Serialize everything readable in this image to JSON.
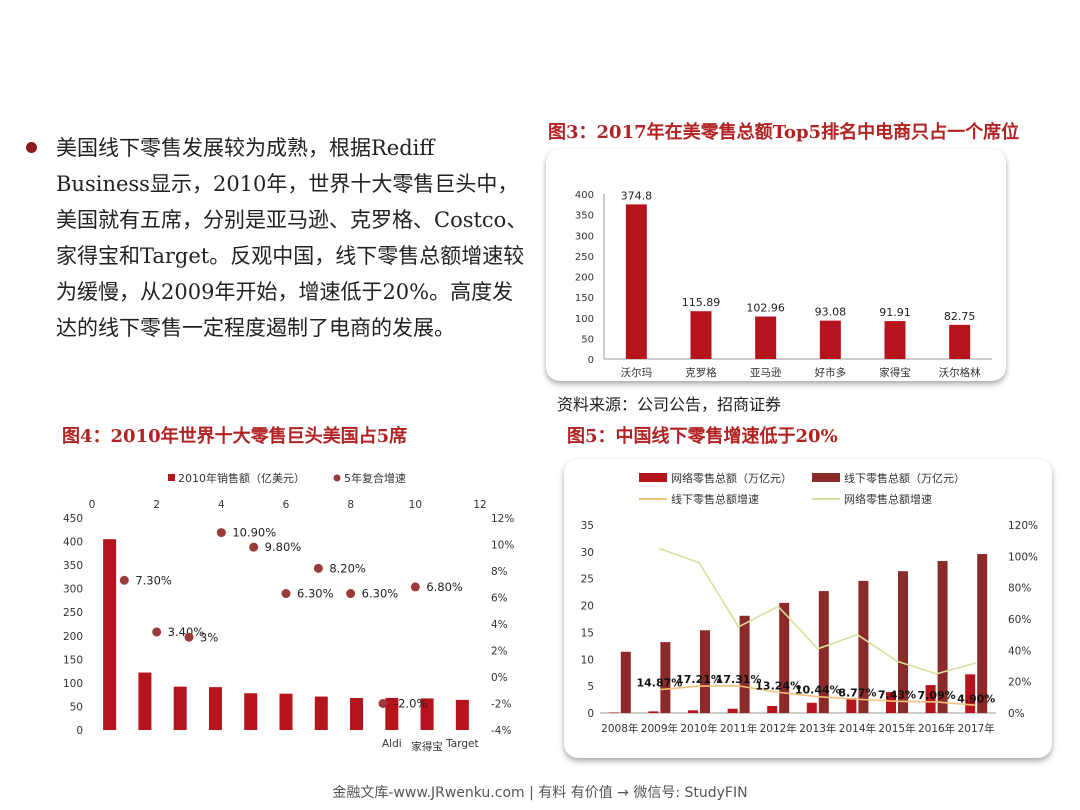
{
  "intro": {
    "text": "美国线下零售发展较为成熟，根据Rediff Business显示，2010年，世界十大零售巨头中，美国就有五席，分别是亚马逊、克罗格、Costco、家得宝和Target。反观中国，线下零售总额增速较为缓慢，从2009年开始，增速低于20%。高度发达的线下零售一定程度遏制了电商的发展。"
  },
  "fig3": {
    "title": "图3：2017年在美零售总额Top5排名中电商只占一个席位",
    "source": "资料来源：公司公告，招商证券"
  },
  "fig4": {
    "title": "图4：2010年世界十大零售巨头美国占5席"
  },
  "fig5": {
    "title": "图5：中国线下零售增速低于20%"
  },
  "footer": "金融文库-www.JRwenku.com | 有料 有价值 → 微信号: StudyFIN",
  "colors": {
    "bar": "#b5141c",
    "bar_dark": "#8c2a2a",
    "dot": "#9b3a3a",
    "offline_growth": "#f2c27a",
    "online_growth": "#d8df9a"
  },
  "chart_data": [
    {
      "id": "fig3",
      "type": "bar",
      "categories": [
        "沃尔玛",
        "克罗格",
        "亚马逊",
        "好市多",
        "家得宝",
        "沃尔格林"
      ],
      "values": [
        374.8,
        115.89,
        102.96,
        93.08,
        91.91,
        82.75
      ],
      "data_labels": [
        "374.8",
        "115.89",
        "102.96",
        "93.08",
        "91.91",
        "82.75"
      ],
      "ylim": [
        0,
        400
      ],
      "yticks": [
        0,
        50,
        100,
        150,
        200,
        250,
        300,
        350,
        400
      ],
      "grid": false
    },
    {
      "id": "fig4",
      "type": "bar",
      "legend": [
        "2010年销售额（亿美元）",
        "5年复合增速"
      ],
      "legend_position": "top",
      "categories": [
        "",
        "",
        "",
        "",
        "",
        "",
        "",
        "",
        "Aldi",
        "家得宝",
        "Target"
      ],
      "series": [
        {
          "name": "2010年销售额（亿美元）",
          "type": "bar",
          "values": [
            405,
            122,
            92,
            91,
            78,
            77,
            71,
            68,
            68,
            67,
            64
          ]
        },
        {
          "name": "5年复合增速",
          "type": "scatter",
          "x": [
            1,
            2,
            3,
            4,
            5,
            6,
            7,
            8,
            9,
            10
          ],
          "values": [
            7.3,
            3.4,
            3.0,
            10.9,
            9.8,
            6.3,
            8.2,
            6.3,
            -2.0,
            6.8
          ],
          "data_labels": [
            "7.30%",
            "3.40%",
            "3%",
            "10.90%",
            "9.80%",
            "6.30%",
            "8.20%",
            "6.30%",
            "-2.0%",
            "6.80%"
          ]
        }
      ],
      "ylim": [
        0,
        450
      ],
      "yticks": [
        0,
        50,
        100,
        150,
        200,
        250,
        300,
        350,
        400,
        450
      ],
      "x2lim": [
        0,
        12
      ],
      "x2ticks": [
        0,
        2,
        4,
        6,
        8,
        10,
        12
      ],
      "y2lim": [
        -4,
        12
      ],
      "y2ticks": [
        "12%",
        "10%",
        "8%",
        "6%",
        "4%",
        "2%",
        "0%",
        "-2%",
        "-4%"
      ],
      "grid": false
    },
    {
      "id": "fig5",
      "type": "bar",
      "legend": [
        "网络零售总额（万亿元）",
        "线下零售总额（万亿元）",
        "线下零售总额增速",
        "网络零售总额增速"
      ],
      "legend_position": "top",
      "categories": [
        "2008年",
        "2009年",
        "2010年",
        "2011年",
        "2012年",
        "2013年",
        "2014年",
        "2015年",
        "2016年",
        "2017年"
      ],
      "series": [
        {
          "name": "网络零售总额（万亿元）",
          "type": "bar",
          "values": [
            0.1,
            0.3,
            0.5,
            0.8,
            1.3,
            1.9,
            2.8,
            3.9,
            5.2,
            7.2
          ]
        },
        {
          "name": "线下零售总额（万亿元）",
          "type": "bar",
          "values": [
            11.4,
            13.2,
            15.4,
            18.1,
            20.5,
            22.7,
            24.6,
            26.4,
            28.3,
            29.6
          ]
        },
        {
          "name": "线下零售总额增速",
          "type": "line",
          "values": [
            null,
            14.87,
            17.21,
            17.31,
            13.24,
            10.44,
            8.77,
            7.43,
            7.09,
            4.9
          ],
          "data_labels": [
            "",
            "14.87%",
            "17.21%",
            "17.31%",
            "13.24%",
            "10.44%",
            "8.77%",
            "7.43%",
            "7.09%",
            "4.90%"
          ]
        },
        {
          "name": "网络零售总额增速",
          "type": "line",
          "values": [
            null,
            105,
            96,
            55,
            68,
            41,
            50,
            33,
            25,
            32
          ]
        }
      ],
      "ylim": [
        0,
        35
      ],
      "yticks": [
        0,
        5,
        10,
        15,
        20,
        25,
        30,
        35
      ],
      "y2lim": [
        0,
        120
      ],
      "y2ticks": [
        "0%",
        "20%",
        "40%",
        "60%",
        "80%",
        "100%",
        "120%"
      ],
      "grid": false
    }
  ]
}
